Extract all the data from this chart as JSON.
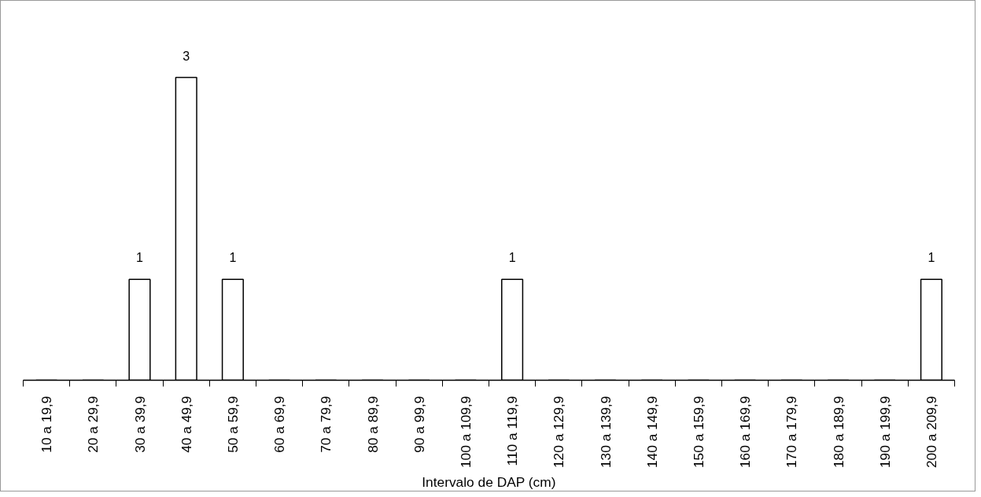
{
  "chart_data": {
    "type": "bar",
    "xlabel": "Intervalo de DAP (cm)",
    "categories": [
      "10 a 19,9",
      "20 a 29,9",
      "30 a 39,9",
      "40 a 49,9",
      "50 a 59,9",
      "60 a 69,9",
      "70 a 79,9",
      "80 a 89,9",
      "90 a 99,9",
      "100 a 109,9",
      "110 a 119,9",
      "120 a 129,9",
      "130 a 139,9",
      "140 a 149,9",
      "150 a 159,9",
      "160 a 169,9",
      "170 a 179,9",
      "180 a 189,9",
      "190 a 199,9",
      "200 a 209,9"
    ],
    "values": [
      0,
      0,
      1,
      3,
      1,
      0,
      0,
      0,
      0,
      0,
      1,
      0,
      0,
      0,
      0,
      0,
      0,
      0,
      0,
      1
    ],
    "value_labels": [
      null,
      null,
      "1",
      "3",
      "1",
      null,
      null,
      null,
      null,
      null,
      "1",
      null,
      null,
      null,
      null,
      null,
      null,
      null,
      null,
      "1"
    ],
    "color": "#ffffff",
    "grid": false
  }
}
